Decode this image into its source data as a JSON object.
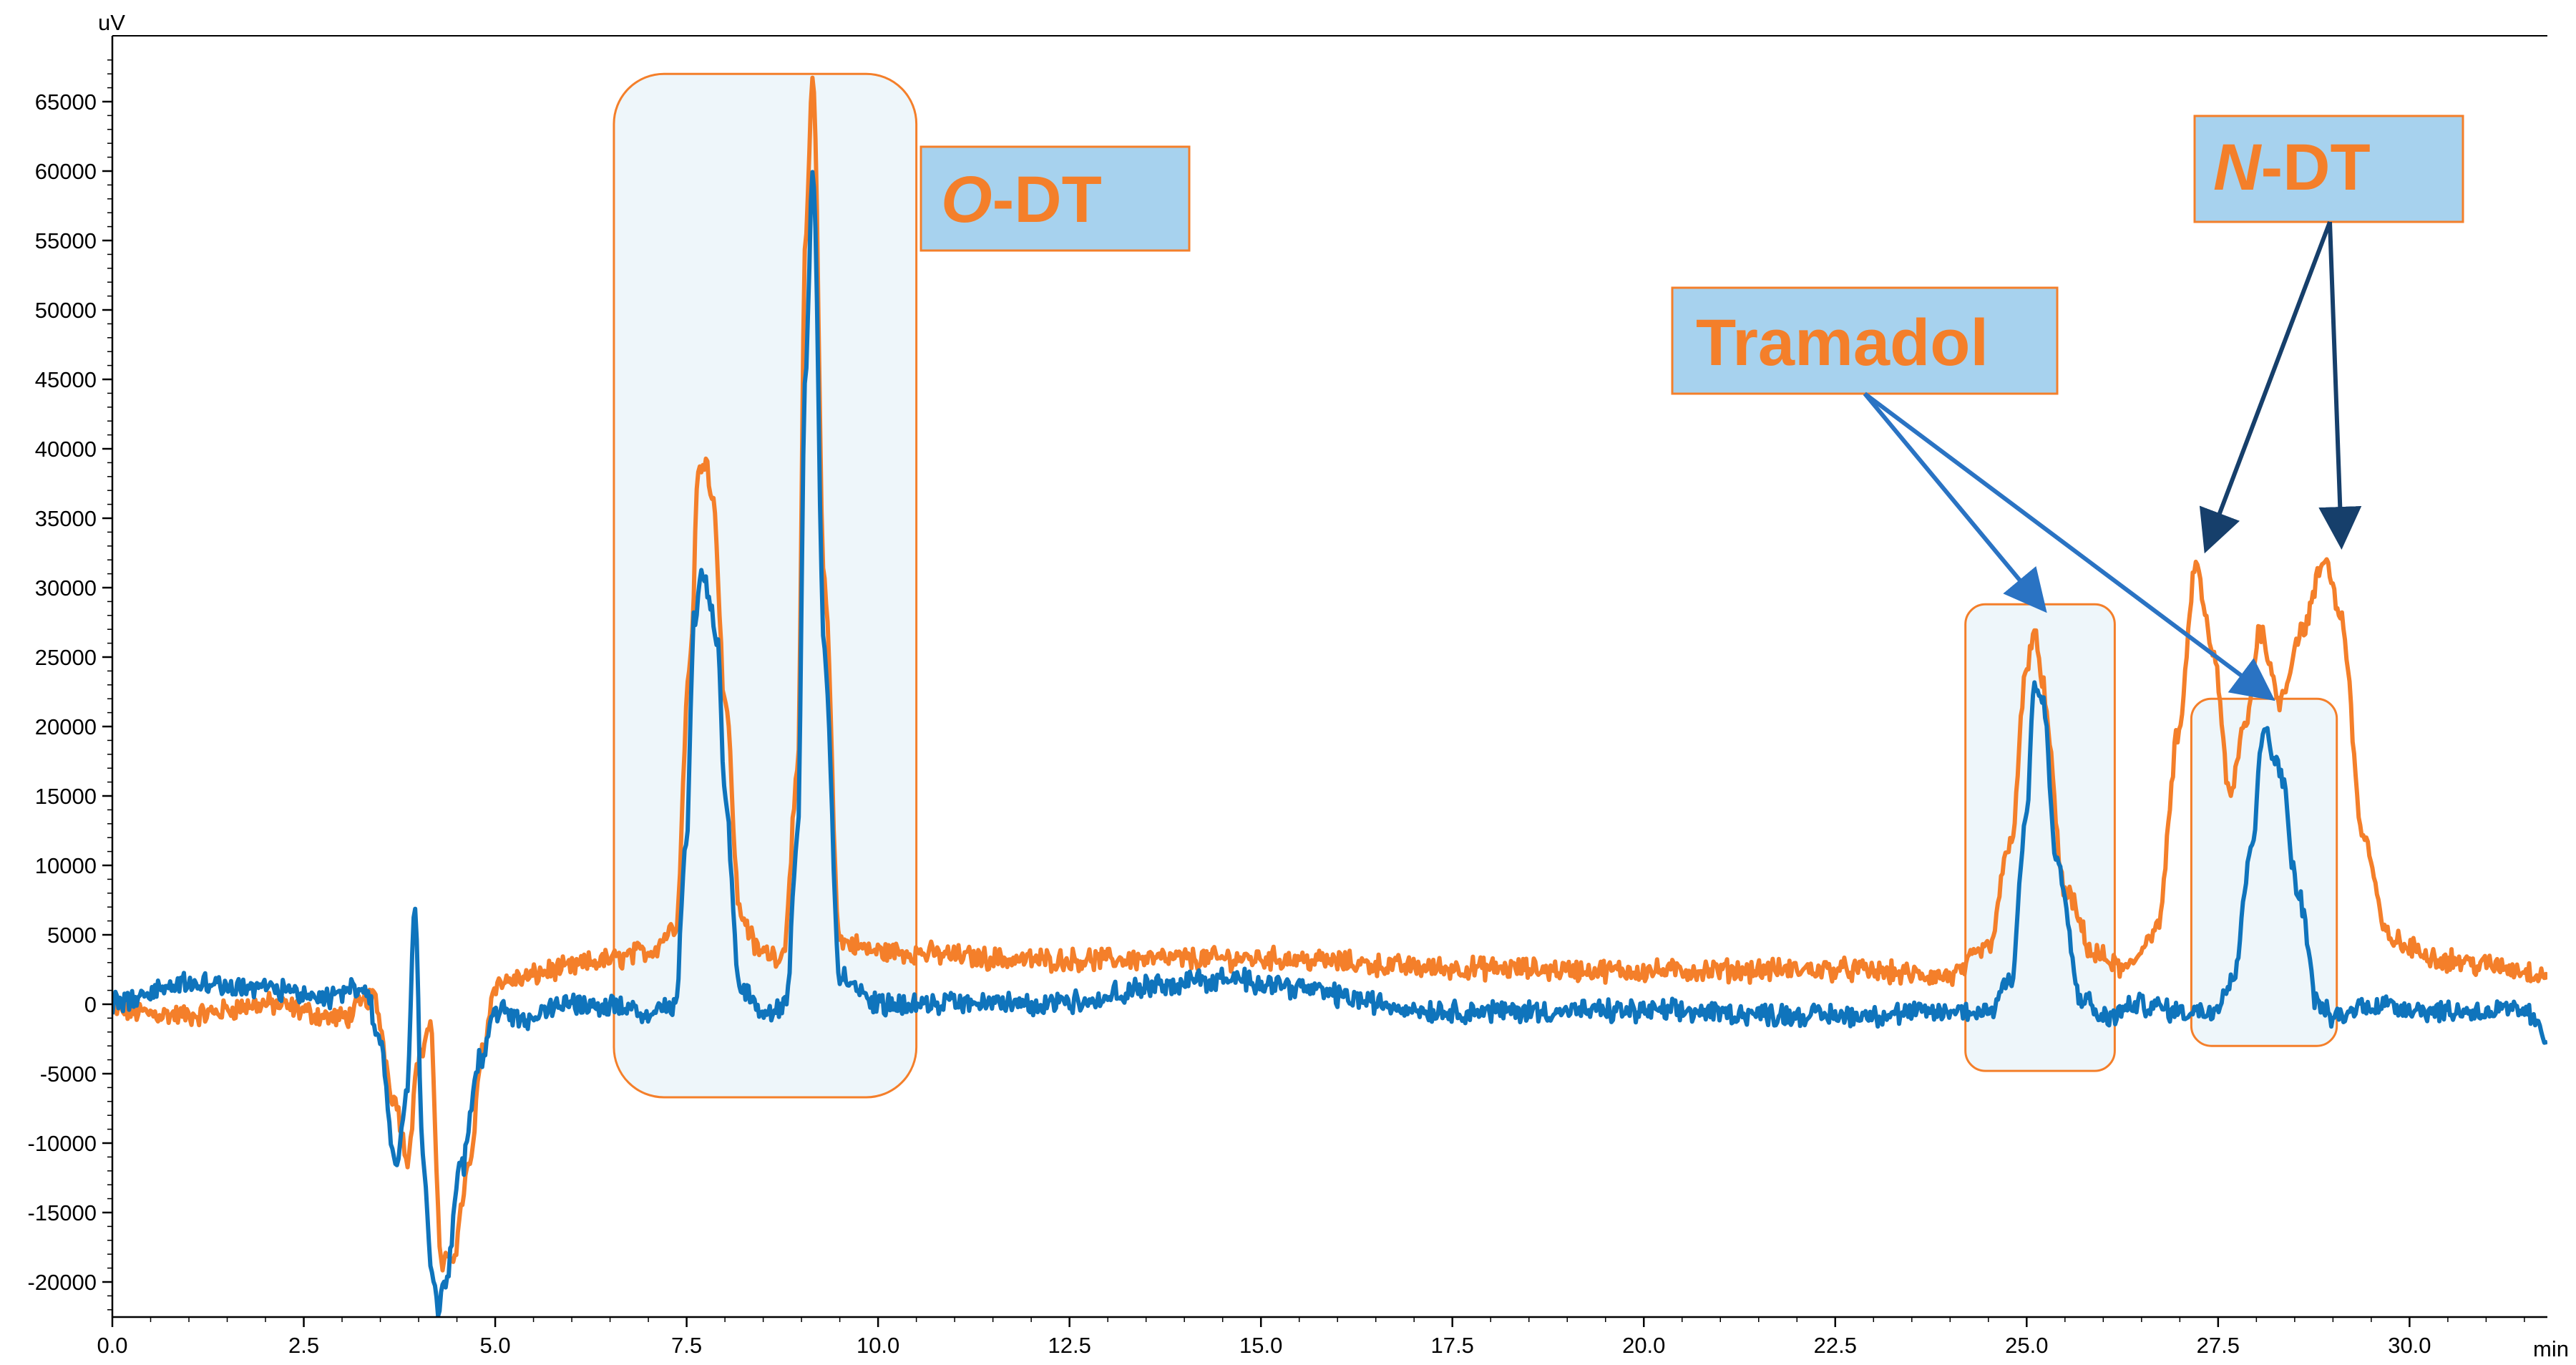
{
  "chart_data": {
    "type": "line",
    "title": "",
    "xlabel": "min",
    "ylabel": "uV",
    "xlim": [
      0,
      31.8
    ],
    "ylim": [
      -22500,
      68500
    ],
    "x_ticks": [
      0.0,
      2.5,
      5.0,
      7.5,
      10.0,
      12.5,
      15.0,
      17.5,
      20.0,
      22.5,
      25.0,
      27.5,
      30.0
    ],
    "x_tick_labels": [
      "0.0",
      "2.5",
      "5.0",
      "7.5",
      "10.0",
      "12.5",
      "15.0",
      "17.5",
      "20.0",
      "22.5",
      "25.0",
      "27.5",
      "30.0"
    ],
    "y_ticks": [
      65000,
      60000,
      55000,
      50000,
      45000,
      40000,
      35000,
      30000,
      25000,
      20000,
      15000,
      10000,
      5000,
      0,
      -5000,
      -10000,
      -15000,
      -20000
    ],
    "y_tick_labels": [
      "65000",
      "60000",
      "55000",
      "50000",
      "45000",
      "40000",
      "35000",
      "30000",
      "25000",
      "20000",
      "15000",
      "10000",
      "5000",
      "0",
      "-5000",
      "-10000",
      "-15000",
      "-20000"
    ],
    "grid": false,
    "series": [
      {
        "name": "orange trace",
        "color": "#F47F2A",
        "x": [
          0.0,
          1.0,
          2.0,
          3.0,
          3.4,
          3.7,
          3.85,
          4.0,
          4.15,
          4.3,
          4.45,
          4.65,
          4.85,
          5.0,
          5.3,
          5.8,
          6.5,
          7.0,
          7.35,
          7.55,
          7.65,
          7.75,
          7.85,
          8.0,
          8.2,
          8.45,
          8.75,
          8.95,
          9.05,
          9.15,
          9.3,
          9.5,
          10.0,
          12.0,
          15.0,
          17.5,
          20.0,
          22.5,
          24.0,
          24.5,
          24.8,
          25.0,
          25.1,
          25.2,
          25.5,
          25.9,
          26.3,
          26.7,
          27.0,
          27.2,
          27.45,
          27.65,
          27.85,
          28.05,
          28.3,
          28.6,
          28.9,
          29.1,
          29.4,
          29.7,
          30.0,
          30.5,
          31.0,
          31.8
        ],
        "values": [
          -500,
          -800,
          0,
          -1000,
          500,
          -7000,
          -11000,
          -4000,
          -1500,
          -19000,
          -18000,
          -12000,
          -3000,
          1500,
          1800,
          2500,
          3200,
          3800,
          5500,
          25000,
          38000,
          39500,
          36000,
          22000,
          6500,
          3800,
          3500,
          16000,
          55000,
          66500,
          30000,
          4500,
          3800,
          3200,
          3300,
          2600,
          2400,
          2500,
          2000,
          4000,
          12000,
          24000,
          27000,
          23000,
          8000,
          3500,
          2500,
          5500,
          20000,
          31500,
          25000,
          15000,
          20000,
          27000,
          22000,
          27000,
          32000,
          28000,
          12000,
          5000,
          4000,
          3200,
          2800,
          2200
        ]
      },
      {
        "name": "blue trace",
        "color": "#0F74BC",
        "x": [
          0.0,
          1.0,
          2.0,
          2.8,
          3.3,
          3.5,
          3.7,
          3.85,
          3.95,
          4.05,
          4.15,
          4.25,
          4.35,
          4.55,
          4.8,
          5.0,
          5.3,
          6.0,
          7.0,
          7.35,
          7.5,
          7.6,
          7.7,
          7.8,
          7.9,
          8.0,
          8.2,
          8.5,
          8.8,
          8.95,
          9.05,
          9.15,
          9.3,
          9.5,
          10.0,
          12.0,
          14.5,
          17.5,
          20.0,
          22.5,
          24.5,
          24.8,
          25.0,
          25.1,
          25.2,
          25.4,
          25.7,
          26.0,
          26.5,
          27.0,
          27.4,
          27.7,
          27.95,
          28.1,
          28.3,
          28.55,
          28.8,
          29.0,
          29.5,
          30.5,
          31.5,
          31.8
        ],
        "values": [
          0,
          1500,
          1200,
          500,
          1500,
          -3000,
          -12000,
          -6000,
          7000,
          -10000,
          -18000,
          -22000,
          -20000,
          -12000,
          -4000,
          -500,
          -1000,
          0,
          -500,
          0,
          12000,
          28000,
          31000,
          29000,
          26000,
          15000,
          1000,
          -500,
          0,
          12000,
          45000,
          60000,
          25000,
          2000,
          0,
          0,
          1800,
          -500,
          -500,
          -800,
          -500,
          2000,
          14000,
          23000,
          22000,
          10000,
          500,
          -1000,
          0,
          -500,
          -500,
          2000,
          12000,
          20000,
          17000,
          8000,
          0,
          -1000,
          0,
          -500,
          -500,
          -2500
        ]
      }
    ],
    "annotations": [
      {
        "text_italic": "O",
        "text_rest": "-DT",
        "label": "O-DT"
      },
      {
        "text_italic": "",
        "text_rest": "Tramadol",
        "label": "Tramadol"
      },
      {
        "text_italic": "N",
        "text_rest": "-DT",
        "label": "N-DT"
      }
    ],
    "highlight_regions": [
      {
        "name": "O-DT region",
        "x_range": [
          6.55,
          10.5
        ],
        "y_range": [
          -6700,
          67000
        ]
      },
      {
        "name": "Tramadol region (25 min)",
        "x_range": [
          24.2,
          26.15
        ],
        "y_range": [
          -4800,
          28800
        ]
      },
      {
        "name": "Tramadol region (28 min)",
        "x_range": [
          27.15,
          29.05
        ],
        "y_range": [
          -3000,
          22000
        ]
      }
    ],
    "colors": {
      "orange": "#F47F2A",
      "blue": "#0F74BC",
      "label_fill": "#A7D2EE",
      "region_fill": "#EEF6FA",
      "region_stroke": "#F47F2A",
      "arrow_tramadol": "#2A73C3",
      "arrow_ndt": "#163F6B"
    }
  }
}
